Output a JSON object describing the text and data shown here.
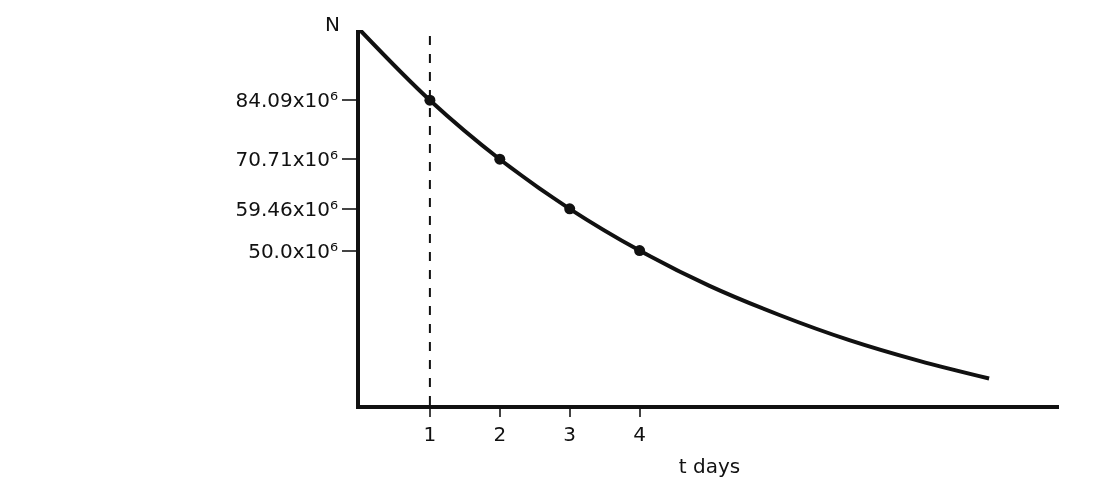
{
  "chart_data": {
    "type": "line",
    "xlabel": "t days",
    "ylabel": "N",
    "series": [
      {
        "color": "#111111",
        "marker": "none",
        "x": [
          0,
          1,
          2,
          3,
          4,
          5,
          6,
          7,
          8,
          9
        ],
        "values": [
          100000000,
          84090000,
          70710000,
          59460000,
          50000000,
          42000000,
          35400000,
          29700000,
          25000000,
          21000000
        ]
      },
      {
        "type": "scatter",
        "color": "#111111",
        "marker": "circle",
        "x": [
          1,
          2,
          3,
          4
        ],
        "values": [
          84090000,
          70710000,
          59460000,
          50000000
        ]
      }
    ],
    "xlim": [
      0,
      10
    ],
    "xticks": [
      1,
      2,
      3,
      4
    ],
    "ylim": [
      15000000,
      100000000
    ],
    "yticks": [
      {
        "value": 84090000,
        "label": "84.09x10⁶"
      },
      {
        "value": 70710000,
        "label": "70.71x10⁶"
      },
      {
        "value": 59460000,
        "label": "59.46x10⁶"
      },
      {
        "value": 50000000,
        "label": "50.0x10⁶"
      }
    ],
    "ref_lines": [
      {
        "axis": "x",
        "value": 1,
        "line_style": "dashed"
      }
    ]
  }
}
